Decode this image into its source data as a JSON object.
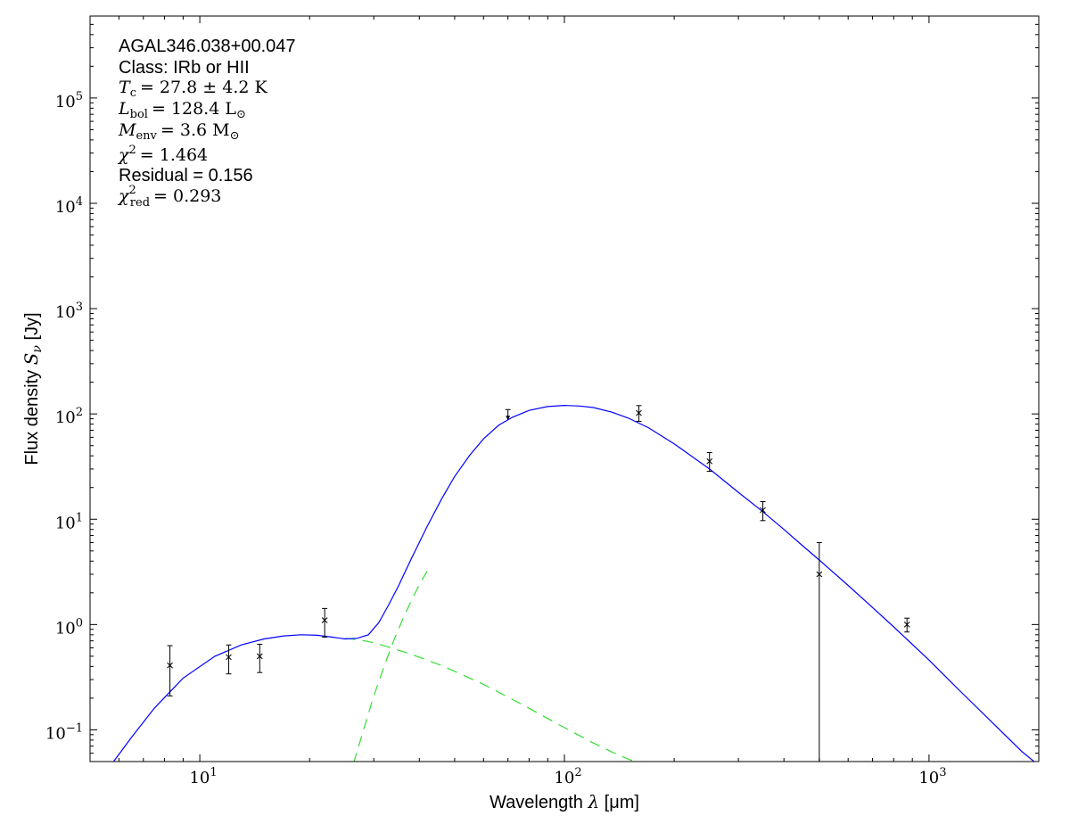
{
  "chart_data": {
    "type": "scatter",
    "title": "",
    "xlabel_prefix": "Wavelength ",
    "xlabel_symbol": "λ",
    "xlabel_unit": " [μm]",
    "ylabel_prefix": "Flux density ",
    "ylabel_symbol": "S",
    "ylabel_sub": "ν",
    "ylabel_unit": " [Jy]",
    "xscale": "log",
    "yscale": "log",
    "xlim": [
      5,
      2000
    ],
    "ylim": [
      0.05,
      600000
    ],
    "grid": false,
    "x_ticks": [
      {
        "value": 10,
        "label": "10",
        "exp": "1"
      },
      {
        "value": 100,
        "label": "10",
        "exp": "2"
      },
      {
        "value": 1000,
        "label": "10",
        "exp": "3"
      }
    ],
    "y_ticks": [
      {
        "value": 0.1,
        "label": "10",
        "exp": "−1"
      },
      {
        "value": 1,
        "label": "10",
        "exp": "0"
      },
      {
        "value": 10,
        "label": "10",
        "exp": "1"
      },
      {
        "value": 100,
        "label": "10",
        "exp": "2"
      },
      {
        "value": 1000,
        "label": "10",
        "exp": "3"
      },
      {
        "value": 10000,
        "label": "10",
        "exp": "4"
      },
      {
        "value": 100000,
        "label": "10",
        "exp": "5"
      }
    ],
    "points": [
      {
        "x": 8.28,
        "y": 0.41,
        "err_low": 0.21,
        "err_high": 0.63
      },
      {
        "x": 12.0,
        "y": 0.49,
        "err_low": 0.34,
        "err_high": 0.64
      },
      {
        "x": 14.6,
        "y": 0.5,
        "err_low": 0.35,
        "err_high": 0.65
      },
      {
        "x": 22.0,
        "y": 1.1,
        "err_low": 0.76,
        "err_high": 1.42
      },
      {
        "x": 160,
        "y": 102,
        "err_low": 85,
        "err_high": 120
      },
      {
        "x": 250,
        "y": 35.5,
        "err_low": 28.5,
        "err_high": 43
      },
      {
        "x": 350,
        "y": 12.2,
        "err_low": 9.7,
        "err_high": 14.7
      },
      {
        "x": 500,
        "y": 3.0,
        "err_low": 0.05,
        "err_high": 6.0
      },
      {
        "x": 870,
        "y": 1.0,
        "err_low": 0.85,
        "err_high": 1.15
      }
    ],
    "upper_limits": [
      {
        "x": 70,
        "y": 110
      }
    ],
    "model_total": {
      "color": "#0000ff",
      "x": [
        5.8,
        6.5,
        7.5,
        9,
        11,
        13,
        15,
        17,
        19,
        21,
        23,
        25,
        27,
        29,
        31,
        33,
        35,
        38,
        42,
        46,
        50,
        55,
        60,
        66,
        72,
        80,
        90,
        100,
        110,
        120,
        135,
        150,
        170,
        200,
        250,
        300,
        350,
        400,
        450,
        500,
        600,
        700,
        800,
        1000,
        1200,
        1500,
        1800,
        2000
      ],
      "y": [
        0.05,
        0.085,
        0.16,
        0.31,
        0.5,
        0.64,
        0.73,
        0.78,
        0.8,
        0.79,
        0.76,
        0.73,
        0.74,
        0.8,
        1.05,
        1.55,
        2.3,
        4.2,
        8.5,
        15.5,
        25.5,
        40.5,
        58,
        78,
        93,
        108,
        117.5,
        120.5,
        119,
        115,
        104,
        91,
        74,
        52,
        30,
        18,
        11.8,
        8.0,
        5.6,
        4.1,
        2.35,
        1.45,
        0.95,
        0.46,
        0.245,
        0.115,
        0.062,
        0.046
      ]
    },
    "model_warm": {
      "color": "#33dd33",
      "style": "dashed",
      "x": [
        25,
        27,
        29,
        31,
        33,
        36,
        40,
        45,
        50,
        60,
        70,
        80,
        90,
        100,
        120,
        140,
        160
      ],
      "y": [
        0.74,
        0.72,
        0.69,
        0.65,
        0.61,
        0.555,
        0.49,
        0.42,
        0.36,
        0.27,
        0.205,
        0.16,
        0.128,
        0.105,
        0.075,
        0.058,
        0.048
      ]
    },
    "model_cold": {
      "color": "#33dd33",
      "style": "dashed",
      "x": [
        26.4,
        28,
        30,
        32,
        34,
        36,
        38,
        40,
        42
      ],
      "y": [
        0.048,
        0.095,
        0.21,
        0.4,
        0.7,
        1.12,
        1.68,
        2.4,
        3.2
      ]
    }
  },
  "annotation": {
    "source_name": "AGAL346.038+00.047",
    "class_line": "Class: IRb or HII",
    "tc_line": "= 27.8 ± 4.2 K",
    "lbol_line": "= 128.4 L",
    "menv_line": "= 3.6 M",
    "chi2_line": "= 1.464",
    "residual_line": "Residual = 0.156",
    "chi2red_line": "= 0.293"
  }
}
